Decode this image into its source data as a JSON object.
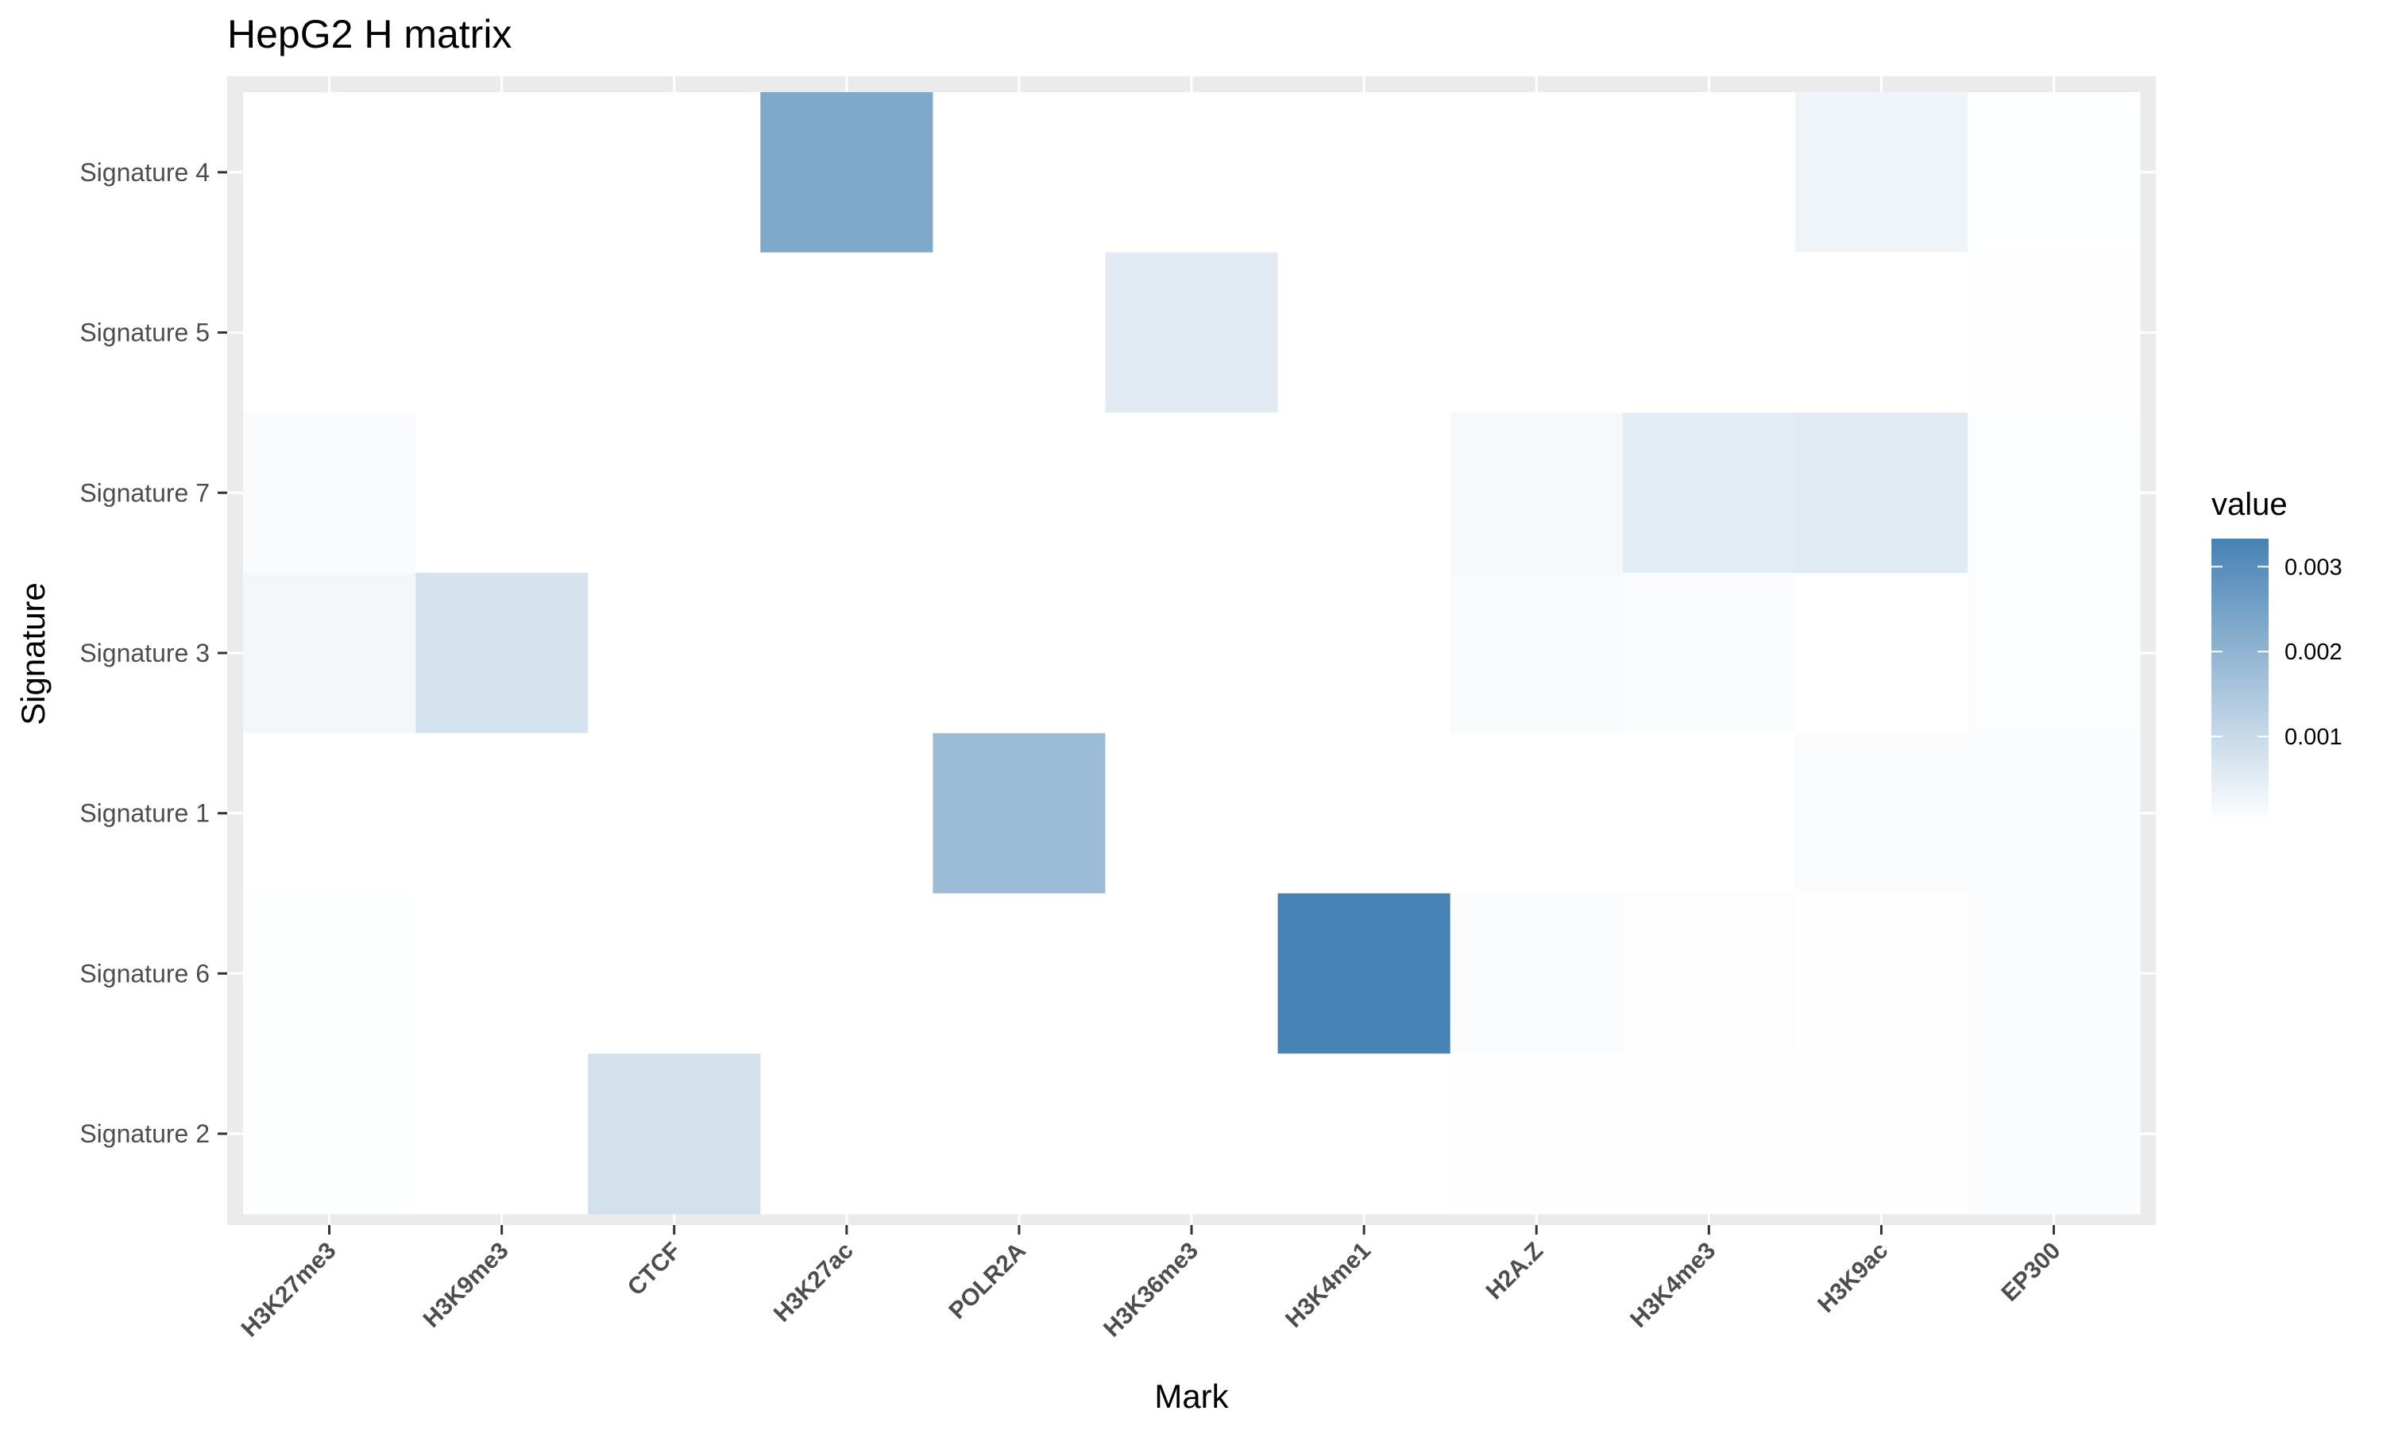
{
  "chart_data": {
    "type": "heatmap",
    "title": "HepG2 H matrix",
    "xlabel": "Mark",
    "ylabel": "Signature",
    "x_categories": [
      "H3K27me3",
      "H3K9me3",
      "CTCF",
      "H3K27ac",
      "POLR2A",
      "H3K36me3",
      "H3K4me1",
      "H2A.Z",
      "H3K4me3",
      "H3K9ac",
      "EP300"
    ],
    "y_categories": [
      "Signature 4",
      "Signature 5",
      "Signature 7",
      "Signature 3",
      "Signature 1",
      "Signature 6",
      "Signature 2"
    ],
    "values": [
      [
        0,
        0,
        0,
        0.0023,
        0,
        0,
        0,
        0,
        0,
        0.00028,
        1e-05
      ],
      [
        0,
        0,
        0,
        0,
        0,
        0.00052,
        0,
        0,
        0,
        0,
        2e-05
      ],
      [
        0.00011,
        0,
        0,
        0,
        0,
        0,
        0,
        0.00017,
        0.0005,
        0.00055,
        5e-05
      ],
      [
        0.0002,
        0.00075,
        0,
        0,
        0,
        0,
        0,
        0.00013,
        8e-05,
        0,
        6e-05
      ],
      [
        0,
        0,
        0,
        0,
        0.0018,
        0,
        0,
        0,
        0,
        7e-05,
        7e-05
      ],
      [
        3e-05,
        0,
        0,
        0,
        0,
        0,
        0.0033,
        8e-05,
        4e-05,
        2e-05,
        8e-05
      ],
      [
        3e-05,
        0,
        0.0008,
        0,
        0,
        0,
        0,
        2e-05,
        2e-05,
        2e-05,
        8e-05
      ]
    ],
    "legend": {
      "title": "value",
      "position": "right",
      "range": [
        0,
        0.00333
      ],
      "ticks": [
        0.001,
        0.002,
        0.003
      ],
      "tick_labels": [
        "0.001",
        "0.002",
        "0.003"
      ],
      "low_color": "#ffffff",
      "high_color": "#4682b4"
    },
    "panel_background": "#ebebeb",
    "grid": true
  }
}
